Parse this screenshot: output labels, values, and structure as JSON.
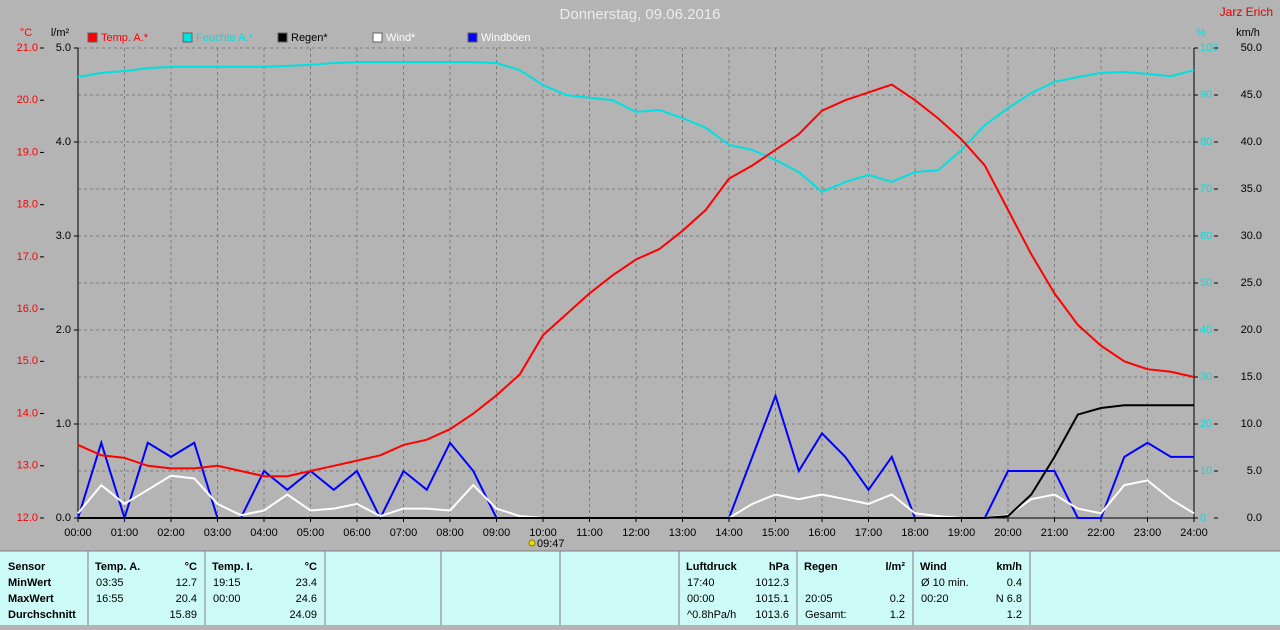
{
  "chart_data": {
    "type": "line",
    "title": "Donnerstag, 09.06.2016",
    "author": "Jarz Erich",
    "annotation": "09:47",
    "x": [
      0,
      0.5,
      1,
      1.5,
      2,
      2.5,
      3,
      3.5,
      4,
      4.5,
      5,
      5.5,
      6,
      6.5,
      7,
      7.5,
      8,
      8.5,
      9,
      9.5,
      10,
      10.5,
      11,
      11.5,
      12,
      12.5,
      13,
      13.5,
      14,
      14.5,
      15,
      15.5,
      16,
      16.5,
      17,
      17.5,
      18,
      18.5,
      19,
      19.5,
      20,
      20.5,
      21,
      21.5,
      22,
      22.5,
      23,
      23.5,
      24
    ],
    "xlim": [
      0,
      24
    ],
    "xticks": [
      {
        "value": 0,
        "label": "00:00"
      },
      {
        "value": 1,
        "label": "01:00"
      },
      {
        "value": 2,
        "label": "02:00"
      },
      {
        "value": 3,
        "label": "03:00"
      },
      {
        "value": 4,
        "label": "04:00"
      },
      {
        "value": 5,
        "label": "05:00"
      },
      {
        "value": 6,
        "label": "06:00"
      },
      {
        "value": 7,
        "label": "07:00"
      },
      {
        "value": 8,
        "label": "08:00"
      },
      {
        "value": 9,
        "label": "09:00"
      },
      {
        "value": 10,
        "label": "10:00"
      },
      {
        "value": 11,
        "label": "11:00"
      },
      {
        "value": 12,
        "label": "12:00"
      },
      {
        "value": 13,
        "label": "13:00"
      },
      {
        "value": 14,
        "label": "14:00"
      },
      {
        "value": 15,
        "label": "15:00"
      },
      {
        "value": 16,
        "label": "16:00"
      },
      {
        "value": 17,
        "label": "17:00"
      },
      {
        "value": 18,
        "label": "18:00"
      },
      {
        "value": 19,
        "label": "19:00"
      },
      {
        "value": 20,
        "label": "20:00"
      },
      {
        "value": 21,
        "label": "21:00"
      },
      {
        "value": 22,
        "label": "22:00"
      },
      {
        "value": 23,
        "label": "23:00"
      },
      {
        "value": 24,
        "label": "24:00"
      }
    ],
    "ylabel": "°C",
    "ylim": [
      12,
      21
    ],
    "yticks": [
      {
        "value": 12,
        "label": "12.0"
      },
      {
        "value": 13,
        "label": "13.0"
      },
      {
        "value": 14,
        "label": "14.0"
      },
      {
        "value": 15,
        "label": "15.0"
      },
      {
        "value": 16,
        "label": "16.0"
      },
      {
        "value": 17,
        "label": "17.0"
      },
      {
        "value": 18,
        "label": "18.0"
      },
      {
        "value": 19,
        "label": "19.0"
      },
      {
        "value": 20,
        "label": "20.0"
      },
      {
        "value": 21,
        "label": "21.0"
      }
    ],
    "y2label": "l/m²",
    "y2lim": [
      0,
      5
    ],
    "y2ticks": [
      {
        "value": 0,
        "label": "0.0"
      },
      {
        "value": 1,
        "label": "1.0"
      },
      {
        "value": 2,
        "label": "2.0"
      },
      {
        "value": 3,
        "label": "3.0"
      },
      {
        "value": 4,
        "label": "4.0"
      },
      {
        "value": 5,
        "label": "5.0"
      }
    ],
    "y3label": "%",
    "y3lim": [
      0,
      100
    ],
    "y3ticks": [
      0,
      10,
      20,
      30,
      40,
      50,
      60,
      70,
      80,
      90,
      100
    ],
    "y4label": "km/h",
    "y4lim": [
      0,
      50
    ],
    "y4ticks": [
      {
        "value": 0,
        "label": "0.0"
      },
      {
        "value": 5,
        "label": "5.0"
      },
      {
        "value": 10,
        "label": "10.0"
      },
      {
        "value": 15,
        "label": "15.0"
      },
      {
        "value": 20,
        "label": "20.0"
      },
      {
        "value": 25,
        "label": "25.0"
      },
      {
        "value": 30,
        "label": "30.0"
      },
      {
        "value": 35,
        "label": "35.0"
      },
      {
        "value": 40,
        "label": "40.0"
      },
      {
        "value": 45,
        "label": "45.0"
      },
      {
        "value": 50,
        "label": "50.0"
      }
    ],
    "grid": true,
    "series": [
      {
        "name": "Temp. A.*",
        "color": "#ff0000",
        "axis": "y",
        "values": [
          13.4,
          13.2,
          13.15,
          13.0,
          12.95,
          12.95,
          13.0,
          12.9,
          12.8,
          12.8,
          12.9,
          13.0,
          13.1,
          13.2,
          13.4,
          13.5,
          13.7,
          14.0,
          14.35,
          14.75,
          15.5,
          15.9,
          16.3,
          16.65,
          16.95,
          17.15,
          17.5,
          17.9,
          18.5,
          18.75,
          19.05,
          19.35,
          19.8,
          20.0,
          20.15,
          20.3,
          20.0,
          19.65,
          19.25,
          18.75,
          17.9,
          17.05,
          16.3,
          15.7,
          15.3,
          15.0,
          14.85,
          14.8,
          14.7
        ]
      },
      {
        "name": "Feuchte A.*",
        "color": "#00e0e0",
        "axis": "y3",
        "values": [
          93.8,
          94.7,
          95.1,
          95.7,
          96,
          96,
          96,
          96,
          96,
          96.2,
          96.4,
          96.8,
          97,
          97,
          97,
          97,
          97,
          97,
          96.8,
          95.3,
          92.1,
          90,
          89.4,
          88.9,
          86.4,
          86.8,
          85.1,
          83,
          79.4,
          78.3,
          76.2,
          73.6,
          69.4,
          71.5,
          73,
          71.5,
          73.6,
          74,
          78.3,
          83.6,
          87.2,
          90.4,
          92.8,
          93.8,
          94.7,
          94.9,
          94.5,
          94,
          95.3
        ]
      },
      {
        "name": "Regen*",
        "color": "#000000",
        "axis": "y2",
        "values": [
          0,
          0,
          0,
          0,
          0,
          0,
          0,
          0,
          0,
          0,
          0,
          0,
          0,
          0,
          0,
          0,
          0,
          0,
          0,
          0,
          0,
          0,
          0,
          0,
          0,
          0,
          0,
          0,
          0,
          0,
          0,
          0,
          0,
          0,
          0,
          0,
          0,
          0,
          0,
          0,
          0.02,
          0.25,
          0.65,
          1.1,
          1.17,
          1.2,
          1.2,
          1.2,
          1.2
        ]
      },
      {
        "name": "Wind*",
        "color": "#ffffff",
        "axis": "y4",
        "values": [
          0.5,
          3.5,
          1.5,
          3.0,
          4.5,
          4.2,
          1.5,
          0.3,
          0.8,
          2.5,
          0.8,
          1.0,
          1.5,
          0.2,
          1.0,
          1.0,
          0.8,
          3.5,
          1.0,
          0.2,
          0,
          0,
          0,
          0,
          0,
          0,
          0,
          0,
          0,
          1.5,
          2.5,
          2.0,
          2.5,
          2.0,
          1.5,
          2.5,
          0.5,
          0.2,
          0,
          0,
          0.3,
          2.0,
          2.5,
          1.0,
          0.5,
          3.5,
          4.0,
          2.0,
          0.5
        ]
      },
      {
        "name": "Windböen",
        "color": "#0000ff",
        "axis": "y4",
        "values": [
          0,
          8,
          0,
          8,
          6.5,
          8,
          0,
          0,
          5,
          3,
          5,
          3,
          5,
          0,
          5,
          3,
          8,
          5,
          0,
          0,
          0,
          0,
          0,
          0,
          0,
          0,
          0,
          0,
          0,
          6.5,
          13,
          5,
          9,
          6.5,
          3,
          6.5,
          0,
          0,
          0,
          0,
          5,
          5,
          5,
          0,
          0,
          6.5,
          8,
          6.5,
          6.5
        ]
      }
    ]
  },
  "stats": {
    "header": "Sensor",
    "row_labels": [
      "MinWert",
      "MaxWert",
      "Durchschnitt"
    ],
    "groups": [
      {
        "title": "Temp. A.",
        "unit": "°C",
        "rows": [
          {
            "time": "03:35",
            "value": "12.7"
          },
          {
            "time": "16:55",
            "value": "20.4"
          },
          {
            "value": "15.89"
          }
        ]
      },
      {
        "title": "Temp. I.",
        "unit": "°C",
        "rows": [
          {
            "time": "19:15",
            "value": "23.4"
          },
          {
            "time": "00:00",
            "value": "24.6"
          },
          {
            "value": "24.09"
          }
        ]
      },
      {
        "title": "Luftdruck",
        "unit": "hPa",
        "rows": [
          {
            "time": "17:40",
            "value": "1012.3"
          },
          {
            "time": "00:00",
            "value": "1015.1"
          },
          {
            "time": "^0.8hPa/h",
            "value": "1013.6"
          }
        ]
      },
      {
        "title": "Regen",
        "unit": "l/m²",
        "rows": [
          null,
          {
            "time": "20:05",
            "value": "0.2"
          },
          {
            "time": "Gesamt:",
            "value": "1.2"
          }
        ]
      },
      {
        "title": "Wind",
        "unit": "km/h",
        "rows": [
          {
            "time": "Ø 10 min.",
            "value": "0.4"
          },
          {
            "time": "00:20",
            "value": "N 6.8"
          },
          {
            "value": "1.2"
          }
        ]
      }
    ]
  }
}
